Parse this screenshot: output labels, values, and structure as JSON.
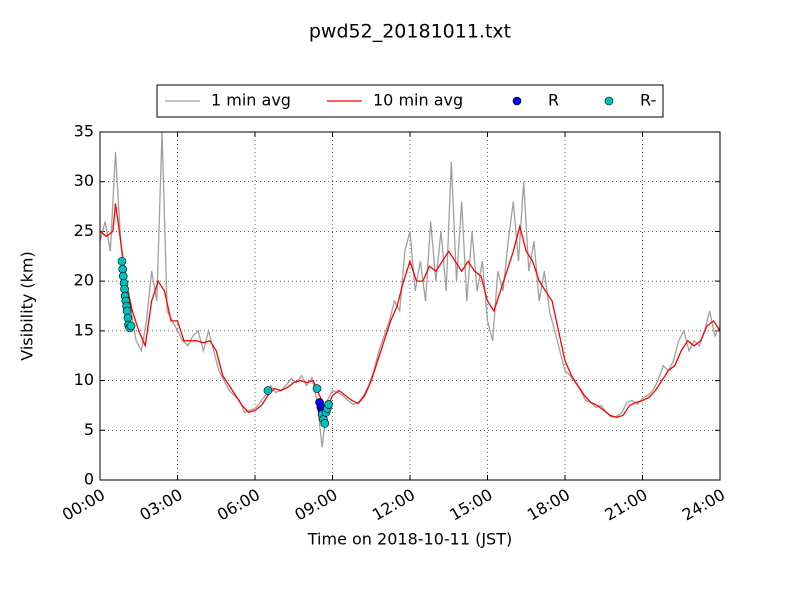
{
  "chart_data": {
    "type": "line",
    "title": "pwd52_20181011.txt",
    "x_label": "Time on 2018-10-11 (JST)",
    "y_label": "Visibility (km)",
    "xlim": [
      0,
      24
    ],
    "ylim": [
      0,
      35
    ],
    "xticks": [
      {
        "value": 0,
        "label": "00:00"
      },
      {
        "value": 3,
        "label": "03:00"
      },
      {
        "value": 6,
        "label": "06:00"
      },
      {
        "value": 9,
        "label": "09:00"
      },
      {
        "value": 12,
        "label": "12:00"
      },
      {
        "value": 15,
        "label": "15:00"
      },
      {
        "value": 18,
        "label": "18:00"
      },
      {
        "value": 21,
        "label": "21:00"
      },
      {
        "value": 24,
        "label": "24:00"
      }
    ],
    "yticks": [
      0,
      5,
      10,
      15,
      20,
      25,
      30,
      35
    ],
    "grid": true,
    "legend": "top",
    "series": [
      {
        "name": "1 min avg",
        "kind": "line",
        "color": "#a0a0a0",
        "x": [
          0,
          0.2,
          0.4,
          0.6,
          0.8,
          1,
          1.2,
          1.4,
          1.6,
          1.8,
          2,
          2.2,
          2.4,
          2.6,
          2.8,
          3,
          3.2,
          3.4,
          3.6,
          3.8,
          4,
          4.2,
          4.4,
          4.6,
          4.8,
          5,
          5.2,
          5.4,
          5.6,
          5.8,
          6,
          6.2,
          6.4,
          6.6,
          6.8,
          7,
          7.2,
          7.4,
          7.6,
          7.8,
          8,
          8.2,
          8.4,
          8.6,
          8.8,
          9,
          9.2,
          9.4,
          9.6,
          9.8,
          10,
          10.2,
          10.4,
          10.6,
          10.8,
          11,
          11.2,
          11.4,
          11.6,
          11.8,
          12,
          12.2,
          12.4,
          12.6,
          12.8,
          13,
          13.2,
          13.4,
          13.6,
          13.8,
          14,
          14.2,
          14.4,
          14.6,
          14.8,
          15,
          15.2,
          15.4,
          15.6,
          15.8,
          16,
          16.2,
          16.4,
          16.6,
          16.8,
          17,
          17.2,
          17.4,
          17.6,
          17.8,
          18,
          18.2,
          18.4,
          18.6,
          18.8,
          19,
          19.2,
          19.4,
          19.6,
          19.8,
          20,
          20.2,
          20.4,
          20.6,
          20.8,
          21,
          21.2,
          21.4,
          21.6,
          21.8,
          22,
          22.2,
          22.4,
          22.6,
          22.8,
          23,
          23.2,
          23.4,
          23.6,
          23.8,
          24
        ],
        "values": [
          24,
          26,
          23,
          33,
          24,
          19,
          17,
          14,
          13,
          16,
          21,
          18,
          35,
          17,
          16,
          15,
          14,
          13.5,
          14.5,
          15,
          13,
          15,
          13,
          11,
          10,
          9,
          8.5,
          8,
          6.8,
          7,
          7.2,
          7.8,
          8.5,
          9.5,
          8.8,
          9,
          9.5,
          10.2,
          9.8,
          10.5,
          9.5,
          10.3,
          8,
          3.3,
          8,
          9,
          8.8,
          8.5,
          8,
          7.6,
          7.8,
          8.5,
          9.5,
          11,
          13,
          14.5,
          16,
          18,
          17,
          23,
          25,
          19,
          22,
          18,
          26,
          20,
          25,
          19,
          32,
          20,
          28,
          18,
          25,
          19,
          22,
          16,
          14,
          21,
          19,
          24,
          28,
          22,
          30,
          21,
          24,
          18,
          21,
          17,
          15,
          13,
          11,
          10.5,
          9.8,
          9,
          8,
          7.8,
          7.3,
          7.5,
          6.8,
          6.3,
          6.4,
          6.8,
          7.8,
          8,
          7.6,
          8.2,
          8.5,
          9,
          10,
          11.5,
          11,
          12,
          14,
          15,
          13,
          14,
          13.5,
          15,
          17,
          14.5,
          15.5
        ]
      },
      {
        "name": "10 min avg",
        "kind": "line",
        "color": "#ff0000",
        "x": [
          0,
          0.25,
          0.5,
          0.6,
          0.75,
          1,
          1.25,
          1.5,
          1.75,
          2,
          2.25,
          2.5,
          2.75,
          3,
          3.25,
          3.5,
          3.75,
          4,
          4.25,
          4.5,
          4.75,
          5,
          5.25,
          5.5,
          5.75,
          6,
          6.25,
          6.5,
          6.75,
          7,
          7.25,
          7.5,
          7.75,
          8,
          8.25,
          8.5,
          8.75,
          9,
          9.25,
          9.5,
          9.75,
          10,
          10.25,
          10.5,
          10.75,
          11,
          11.25,
          11.5,
          11.75,
          12,
          12.25,
          12.5,
          12.75,
          13,
          13.25,
          13.5,
          13.75,
          14,
          14.25,
          14.5,
          14.75,
          15,
          15.25,
          15.5,
          15.75,
          16,
          16.25,
          16.5,
          16.75,
          17,
          17.25,
          17.5,
          17.75,
          18,
          18.25,
          18.5,
          18.75,
          19,
          19.25,
          19.5,
          19.75,
          20,
          20.25,
          20.5,
          20.75,
          21,
          21.25,
          21.5,
          21.75,
          22,
          22.25,
          22.5,
          22.75,
          23,
          23.25,
          23.5,
          23.75,
          24
        ],
        "values": [
          25,
          24.5,
          25,
          27.8,
          25,
          20,
          17,
          15,
          13.5,
          18,
          20,
          19,
          16,
          16,
          14,
          14,
          14,
          13.8,
          14,
          13,
          10.5,
          9.5,
          8.5,
          7.5,
          6.8,
          7,
          7.5,
          8.5,
          9.2,
          9,
          9.3,
          9.8,
          10,
          9.8,
          10,
          8.5,
          7,
          8.5,
          9,
          8.5,
          8,
          7.7,
          8.5,
          10,
          12,
          14,
          16,
          17.5,
          20,
          22,
          20,
          20,
          21.5,
          21,
          22,
          23,
          22,
          21,
          22,
          21,
          20.5,
          18,
          17,
          19,
          21,
          23,
          25.5,
          23,
          22,
          20,
          19,
          18,
          15,
          12,
          10.5,
          9.5,
          8.5,
          7.8,
          7.5,
          7,
          6.5,
          6.3,
          6.5,
          7.5,
          7.8,
          8,
          8.3,
          9,
          10,
          11,
          11.5,
          13,
          14,
          13.5,
          14,
          15.5,
          16,
          15
        ]
      },
      {
        "name": "R",
        "kind": "scatter",
        "color": "#0000ff",
        "x": [
          8.5,
          8.55,
          8.6
        ],
        "values": [
          7.8,
          7.3,
          7.0
        ]
      },
      {
        "name": "R-",
        "kind": "scatter",
        "color": "#00bfbf",
        "x": [
          0.85,
          0.88,
          0.9,
          0.93,
          0.95,
          0.97,
          1.0,
          1.03,
          1.05,
          1.08,
          1.1,
          1.15,
          1.2,
          6.5,
          8.4,
          8.6,
          8.65,
          8.7,
          8.75,
          8.8,
          8.85
        ],
        "values": [
          22,
          21.2,
          20.5,
          19.8,
          19.2,
          18.5,
          18,
          17.5,
          17,
          16.3,
          15.6,
          15.3,
          15.5,
          9,
          9.2,
          6.6,
          6.1,
          5.7,
          6.8,
          7.2,
          7.6
        ]
      }
    ]
  }
}
